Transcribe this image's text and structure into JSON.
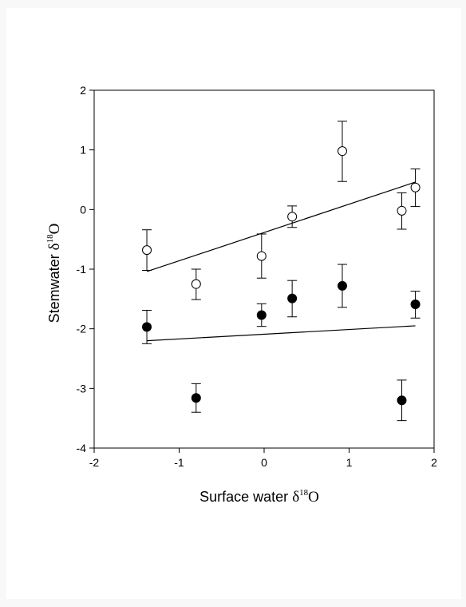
{
  "chart_data": {
    "type": "scatter",
    "xlabel": {
      "main": "Surface water ",
      "delta": "δ",
      "sup": "18",
      "o": "O"
    },
    "ylabel": {
      "main": "Stemwater ",
      "delta": "δ",
      "sup": "18",
      "o": "O"
    },
    "xlim": [
      -2,
      2
    ],
    "ylim": [
      -4,
      2
    ],
    "xticks": [
      "-2",
      "-1",
      "0",
      "1",
      "2"
    ],
    "yticks": [
      "-4",
      "-3",
      "-2",
      "-1",
      "0",
      "1",
      "2"
    ],
    "grid": false,
    "series": [
      {
        "marker": "open-circle",
        "points": [
          {
            "x": -1.38,
            "y": -0.68,
            "err_lo": -1.02,
            "err_hi": -0.34
          },
          {
            "x": -0.8,
            "y": -1.25,
            "err_lo": -1.51,
            "err_hi": -1.0
          },
          {
            "x": -0.03,
            "y": -0.78,
            "err_lo": -1.15,
            "err_hi": -0.41
          },
          {
            "x": 0.33,
            "y": -0.12,
            "err_lo": -0.3,
            "err_hi": 0.06
          },
          {
            "x": 0.92,
            "y": 0.98,
            "err_lo": 0.47,
            "err_hi": 1.48
          },
          {
            "x": 1.62,
            "y": -0.02,
            "err_lo": -0.33,
            "err_hi": 0.28
          },
          {
            "x": 1.78,
            "y": 0.37,
            "err_lo": 0.05,
            "err_hi": 0.68
          }
        ],
        "fit": {
          "x": [
            -1.38,
            1.78
          ],
          "y": [
            -1.04,
            0.46
          ]
        }
      },
      {
        "marker": "filled-circle",
        "points": [
          {
            "x": -1.38,
            "y": -1.97,
            "err_lo": -2.25,
            "err_hi": -1.69
          },
          {
            "x": -0.8,
            "y": -3.16,
            "err_lo": -3.4,
            "err_hi": -2.92
          },
          {
            "x": -0.03,
            "y": -1.77,
            "err_lo": -1.96,
            "err_hi": -1.58
          },
          {
            "x": 0.33,
            "y": -1.49,
            "err_lo": -1.8,
            "err_hi": -1.19
          },
          {
            "x": 0.92,
            "y": -1.28,
            "err_lo": -1.64,
            "err_hi": -0.92
          },
          {
            "x": 1.62,
            "y": -3.2,
            "err_lo": -3.54,
            "err_hi": -2.86
          },
          {
            "x": 1.78,
            "y": -1.59,
            "err_lo": -1.82,
            "err_hi": -1.37
          }
        ],
        "fit": {
          "x": [
            -1.38,
            1.78
          ],
          "y": [
            -2.2,
            -1.95
          ]
        }
      }
    ]
  }
}
